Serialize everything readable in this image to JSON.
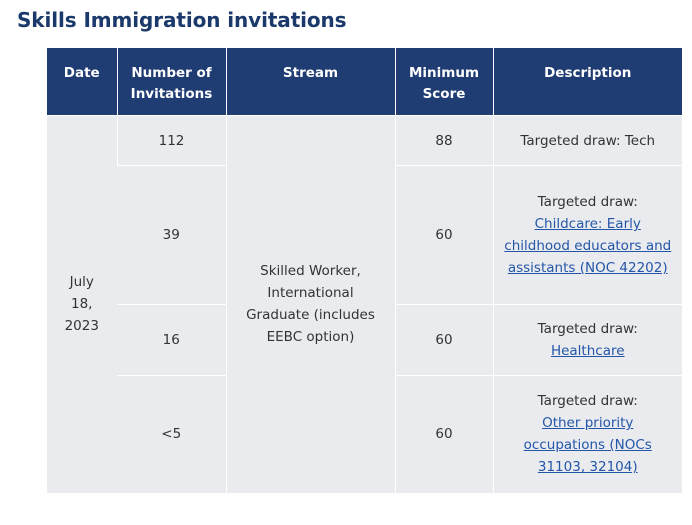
{
  "page": {
    "title": "Skills Immigration invitations"
  },
  "table": {
    "headers": {
      "date": "Date",
      "number": "Number of Invitations",
      "stream": "Stream",
      "minimum_score": "Minimum Score",
      "description": "Description"
    },
    "date_lines": [
      "July",
      "18,",
      "2023"
    ],
    "stream": "Skilled Worker, International Graduate (includes EEBC option)",
    "rows": [
      {
        "invitations": "112",
        "minimum_score": "88",
        "description_prefix": "Targeted draw: Tech",
        "description_link": ""
      },
      {
        "invitations": "39",
        "minimum_score": "60",
        "description_prefix": "Targeted draw:",
        "description_link": "Childcare: Early childhood educators and assistants (NOC 42202)"
      },
      {
        "invitations": "16",
        "minimum_score": "60",
        "description_prefix": "Targeted draw:",
        "description_link": "Healthcare"
      },
      {
        "invitations": "<5",
        "minimum_score": "60",
        "description_prefix": "Targeted draw:",
        "description_link": "Other priority occupations (NOCs 31103, 32104)"
      }
    ]
  }
}
